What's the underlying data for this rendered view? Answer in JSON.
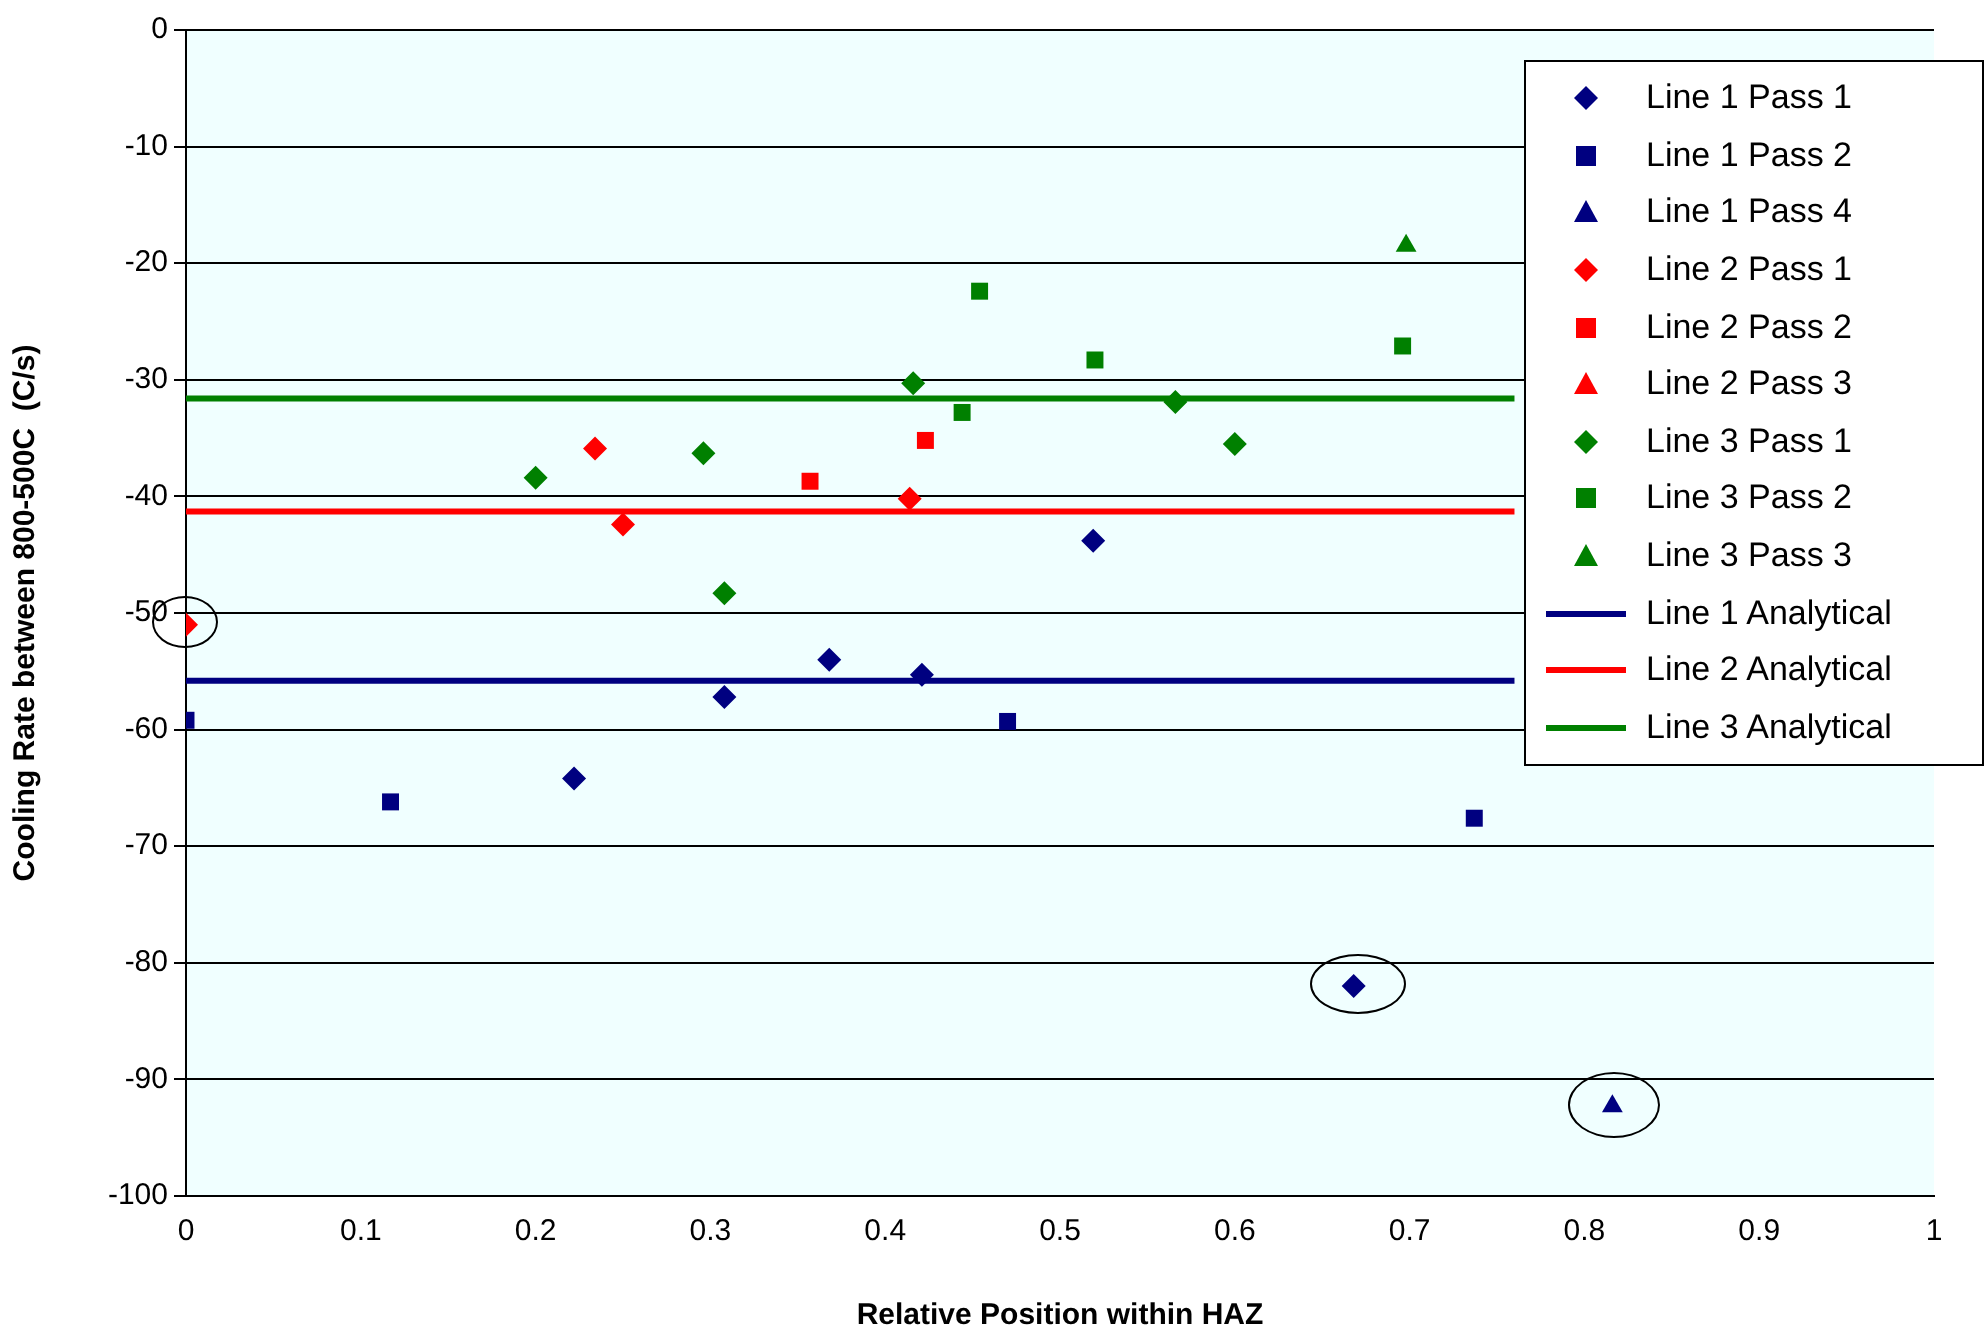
{
  "chart_data": {
    "type": "scatter",
    "xlabel": "Relative Position within HAZ",
    "ylabel": "Cooling Rate between 800-500C  (C/s)",
    "xlim": [
      0,
      1
    ],
    "xticks": [
      0,
      0.1,
      0.2,
      0.3,
      0.4,
      0.5,
      0.6,
      0.7,
      0.8,
      0.9,
      1
    ],
    "ylim": [
      -100,
      0
    ],
    "yticks": [
      -100,
      -90,
      -80,
      -70,
      -60,
      -50,
      -40,
      -30,
      -20,
      -10,
      0
    ],
    "grid": "y",
    "legend": "top right",
    "series": [
      {
        "name": "Line 1 Pass 1",
        "color": "#000080",
        "marker": "diamond",
        "x": [
          0.222,
          0.308,
          0.368,
          0.421,
          0.519,
          0.668
        ],
        "values": [
          -64.2,
          -57.2,
          -54,
          -55.3,
          -43.8,
          -82
        ]
      },
      {
        "name": "Line 1 Pass 2",
        "color": "#000080",
        "marker": "square",
        "x": [
          0,
          0.117,
          0.47,
          0.737
        ],
        "values": [
          -59.2,
          -66.2,
          -59.3,
          -67.6
        ]
      },
      {
        "name": "Line 1 Pass 4",
        "color": "#000080",
        "marker": "triangle",
        "x": [
          0.816
        ],
        "values": [
          -92.3
        ]
      },
      {
        "name": "Line 2 Pass 1",
        "color": "#ff0000",
        "marker": "diamond",
        "x": [
          0,
          0.234,
          0.25,
          0.414
        ],
        "values": [
          -51,
          -35.9,
          -42.4,
          -40.2
        ]
      },
      {
        "name": "Line 2 Pass 2",
        "color": "#ff0000",
        "marker": "square",
        "x": [
          0.357,
          0.423
        ],
        "values": [
          -38.7,
          -35.2
        ]
      },
      {
        "name": "Line 2 Pass 3",
        "color": "#ff0000",
        "marker": "triangle"
      },
      {
        "name": "Line 3 Pass 1",
        "color": "#008000",
        "marker": "diamond",
        "x": [
          0.2,
          0.296,
          0.308,
          0.416,
          0.566,
          0.6
        ],
        "values": [
          -38.4,
          -36.3,
          -48.3,
          -30.3,
          -31.9,
          -35.5
        ]
      },
      {
        "name": "Line 3 Pass 2",
        "color": "#008000",
        "marker": "square",
        "x": [
          0.444,
          0.454,
          0.52,
          0.696
        ],
        "values": [
          -32.8,
          -22.4,
          -28.3,
          -27.1
        ]
      },
      {
        "name": "Line 3 Pass 3",
        "color": "#008000",
        "marker": "triangle",
        "x": [
          0.698
        ],
        "values": [
          -18.5
        ]
      },
      {
        "name": "Line 1 Analytical",
        "color": "#000080",
        "type": "line",
        "marker": "none",
        "x": [
          0,
          0.76
        ],
        "values": [
          -55.8,
          -55.8
        ]
      },
      {
        "name": "Line 2 Analytical",
        "color": "#ff0000",
        "type": "line",
        "marker": "none",
        "x": [
          0,
          0.76
        ],
        "values": [
          -41.3,
          -41.3
        ]
      },
      {
        "name": "Line 3 Analytical",
        "color": "#008000",
        "type": "line",
        "marker": "none",
        "x": [
          0,
          0.76
        ],
        "values": [
          -31.6,
          -31.6
        ]
      }
    ]
  }
}
